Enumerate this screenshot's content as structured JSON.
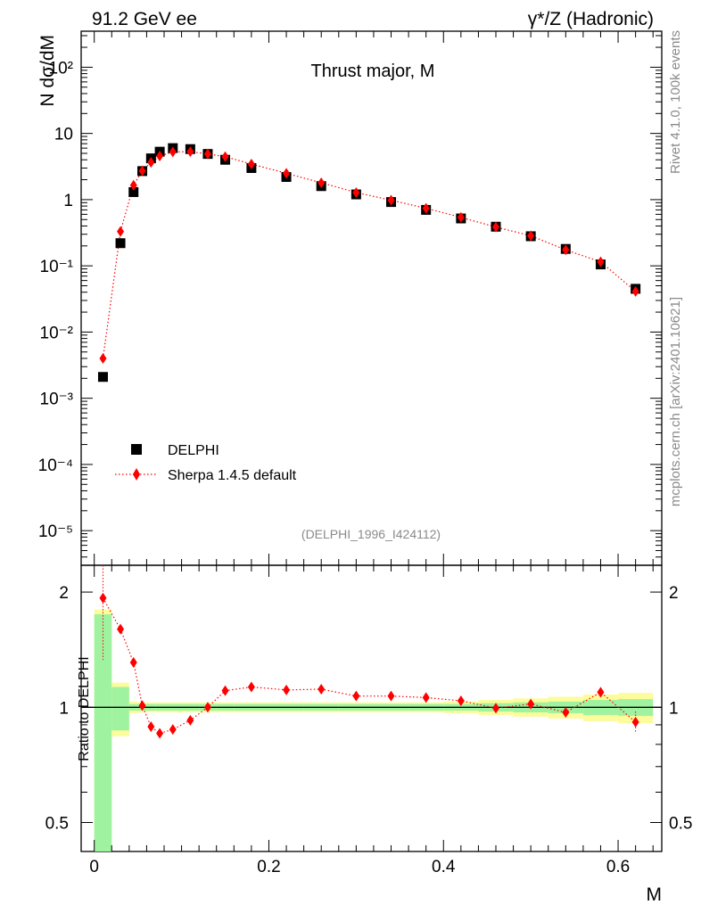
{
  "header": {
    "left": "91.2 GeV ee",
    "right": "γ*/Z (Hadronic)"
  },
  "side": {
    "rivet": "Rivet 4.1.0,  100k events",
    "mcplots": "mcplots.cern.ch [arXiv:2401.10621]"
  },
  "colors": {
    "data": "#000000",
    "mc": "#ff0000",
    "band_stat": "#9ff29f",
    "band_total": "#fcfc9a"
  },
  "chart_data": [
    {
      "type": "scatter",
      "title": "Thrust major, M",
      "ylabel": "N  dσ/dM",
      "xlabel": "M",
      "yscale": "log",
      "ylim": [
        3e-06,
        350
      ],
      "xlim": [
        -0.015,
        0.65
      ],
      "analysis_tag": "(DELPHI_1996_I424112)",
      "legend_position": "lower-left",
      "y_ticks": [
        {
          "value": 100,
          "label": "10²"
        },
        {
          "value": 10,
          "label": "10"
        },
        {
          "value": 1,
          "label": "1"
        },
        {
          "value": 0.1,
          "label": "10⁻¹"
        },
        {
          "value": 0.01,
          "label": "10⁻²"
        },
        {
          "value": 0.001,
          "label": "10⁻³"
        },
        {
          "value": 0.0001,
          "label": "10⁻⁴"
        },
        {
          "value": 1e-05,
          "label": "10⁻⁵"
        }
      ],
      "series": [
        {
          "name": "DELPHI",
          "marker": "square",
          "x": [
            0.01,
            0.03,
            0.045,
            0.055,
            0.065,
            0.075,
            0.09,
            0.11,
            0.13,
            0.15,
            0.18,
            0.22,
            0.26,
            0.3,
            0.34,
            0.38,
            0.42,
            0.46,
            0.5,
            0.54,
            0.58,
            0.62
          ],
          "values": [
            0.0021,
            0.22,
            1.3,
            2.7,
            4.2,
            5.3,
            6.0,
            5.8,
            4.9,
            4.0,
            3.0,
            2.2,
            1.6,
            1.2,
            0.92,
            0.7,
            0.52,
            0.39,
            0.28,
            0.18,
            0.105,
            0.045
          ]
        },
        {
          "name": "Sherpa 1.4.5 default",
          "marker": "diamond",
          "line": "dotted",
          "x": [
            0.01,
            0.03,
            0.045,
            0.055,
            0.065,
            0.075,
            0.09,
            0.11,
            0.13,
            0.15,
            0.18,
            0.22,
            0.26,
            0.3,
            0.34,
            0.38,
            0.42,
            0.46,
            0.5,
            0.54,
            0.58,
            0.62
          ],
          "values": [
            0.004,
            0.33,
            1.65,
            2.72,
            3.65,
            4.55,
            5.25,
            5.3,
            4.9,
            4.45,
            3.45,
            2.5,
            1.8,
            1.28,
            0.98,
            0.74,
            0.54,
            0.385,
            0.285,
            0.174,
            0.115,
            0.041
          ]
        }
      ]
    },
    {
      "type": "scatter",
      "ylabel": "Ratio to DELPHI",
      "xlabel": "M",
      "yscale": "log",
      "ylim": [
        0.42,
        2.35
      ],
      "xlim": [
        -0.015,
        0.65
      ],
      "y_ticks": [
        {
          "value": 0.5,
          "label": "0.5"
        },
        {
          "value": 1,
          "label": "1"
        },
        {
          "value": 2,
          "label": "2"
        }
      ],
      "x_ticks": [
        {
          "value": 0,
          "label": "0"
        },
        {
          "value": 0.2,
          "label": "0.2"
        },
        {
          "value": 0.4,
          "label": "0.4"
        },
        {
          "value": 0.6,
          "label": "0.6"
        }
      ],
      "bands": {
        "bin_edges": [
          0.0,
          0.02,
          0.04,
          0.05,
          0.06,
          0.07,
          0.08,
          0.1,
          0.12,
          0.14,
          0.16,
          0.2,
          0.24,
          0.28,
          0.32,
          0.36,
          0.4,
          0.44,
          0.48,
          0.52,
          0.56,
          0.6,
          0.64
        ],
        "stat": [
          0.75,
          0.13,
          0.02,
          0.02,
          0.02,
          0.02,
          0.02,
          0.02,
          0.02,
          0.02,
          0.02,
          0.02,
          0.02,
          0.02,
          0.02,
          0.02,
          0.02,
          0.025,
          0.03,
          0.035,
          0.045,
          0.05
        ],
        "total": [
          0.8,
          0.16,
          0.035,
          0.03,
          0.03,
          0.03,
          0.03,
          0.03,
          0.03,
          0.03,
          0.03,
          0.03,
          0.03,
          0.03,
          0.03,
          0.03,
          0.035,
          0.045,
          0.055,
          0.065,
          0.08,
          0.09
        ]
      },
      "series": [
        {
          "name": "Sherpa 1.4.5 default",
          "marker": "diamond",
          "line": "dotted",
          "x": [
            0.01,
            0.03,
            0.045,
            0.055,
            0.065,
            0.075,
            0.09,
            0.11,
            0.13,
            0.15,
            0.18,
            0.22,
            0.26,
            0.3,
            0.34,
            0.38,
            0.42,
            0.46,
            0.5,
            0.54,
            0.58,
            0.62
          ],
          "values": [
            1.93,
            1.6,
            1.31,
            1.01,
            0.89,
            0.855,
            0.875,
            0.925,
            1.0,
            1.105,
            1.13,
            1.11,
            1.115,
            1.07,
            1.07,
            1.06,
            1.04,
            0.995,
            1.02,
            0.97,
            1.095,
            0.915
          ],
          "errors": [
            0.6,
            0,
            0,
            0,
            0,
            0,
            0,
            0,
            0,
            0,
            0,
            0,
            0,
            0,
            0,
            0,
            0,
            0,
            0,
            0,
            0,
            0.06
          ]
        }
      ]
    }
  ]
}
